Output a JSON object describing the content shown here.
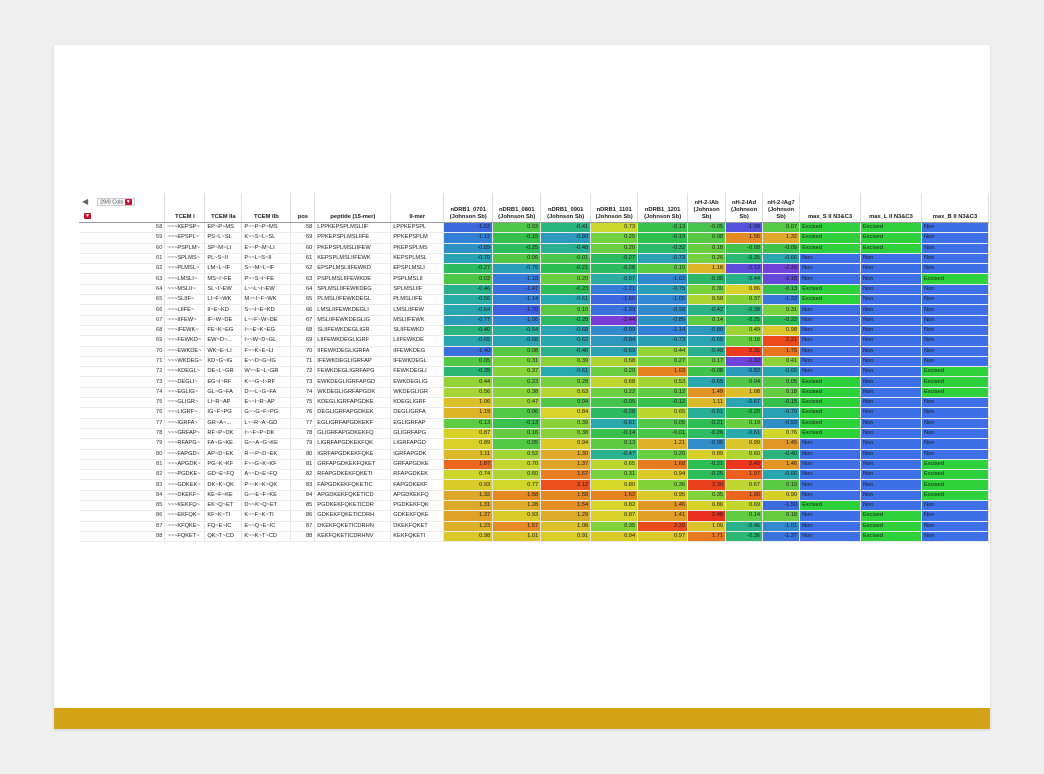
{
  "toolbar": {
    "col_count_label": "29/0 Cols"
  },
  "table": {
    "columns": [
      "",
      "TCEM I",
      "TCEM IIa",
      "TCEM IIb",
      "pos",
      "peptide (15-mer)",
      "9-mer",
      "nDRB1_0701 (Johnson Sb)",
      "nDRB1_0801 (Johnson Sb)",
      "nDRB1_0901 (Johnson Sb)",
      "nDRB1_1101 (Johnson Sb)",
      "nDRB1_1201 (Johnson Sb)",
      "nH-2-IAb (Johnson Sb)",
      "nH-2-IAd (Johnson Sb)",
      "nH-2-IAg7 (Johnson Sb)",
      "max_S II N3&C3",
      "max_L II N3&C3",
      "max_B II N3&C3"
    ],
    "rows": [
      [
        "58",
        "~~~KEPSP~",
        "EP~P~MS",
        "P~~P~P~MS",
        "58",
        "LPPKEPSPLMSLIIF",
        "LPPKEPSPL",
        "-1.52",
        "0.03",
        "-0.41",
        "0.73",
        "-0.13",
        "-0.05",
        "-1.98",
        "0.07",
        "Excised",
        "Excised",
        "Non"
      ],
      [
        "59",
        "~~~EPSPL~",
        "PS~L~SL",
        "K~~S~L~SL",
        "59",
        "PPKEPSPLMSLIIFE",
        "PPKEPSPLM",
        "-1.12",
        "-0.15",
        "-0.80",
        "0.25",
        "-0.19",
        "0.08",
        "1.56",
        "1.32",
        "Excised",
        "Excised",
        "Non"
      ],
      [
        "60",
        "~~~PSPLM~",
        "SP~M~LI",
        "E~~P~M~LI",
        "60",
        "PKEPSPLMSLIIFEW",
        "PKEPSPLMS",
        "-0.89",
        "-0.25",
        "-0.48",
        "0.20",
        "-0.32",
        "0.18",
        "-0.08",
        "-0.09",
        "Excised",
        "Excised",
        "Non"
      ],
      [
        "61",
        "~~~SPLMS~",
        "PL~S~II",
        "P~~L~S~II",
        "61",
        "KEPSPLMSLIIFEWK",
        "KEPSPLMSL",
        "-0.70",
        "0.06",
        "-0.01",
        "-0.27",
        "-0.73",
        "0.26",
        "-0.35",
        "-0.66",
        "Non",
        "Non",
        "Non"
      ],
      [
        "62",
        "~~~PLMSL~",
        "LM~L~IF",
        "S~~M~L~IF",
        "62",
        "EPSPLMSLIIFEWKD",
        "EPSPLMSLI",
        "-0.27",
        "-0.75",
        "-0.21",
        "-0.26",
        "0.10",
        "1.18",
        "-2.13",
        "-2.36",
        "Non",
        "Non",
        "Non"
      ],
      [
        "63",
        "~~~LMSLI~",
        "MS~I~FE",
        "P~~S~I~FE",
        "63",
        "PSPLMSLIIFEWKDE",
        "PSPLMSLII",
        "0.02",
        "-1.18",
        "0.20",
        "-0.57",
        "-1.02",
        "-0.30",
        "-0.44",
        "-2.18",
        "Non",
        "Non",
        "Excised"
      ],
      [
        "64",
        "~~~MSLII~",
        "SL~I~EW",
        "L~~L~I~EW",
        "64",
        "SPLMSLIIFEWKDEG",
        "SPLMSLIIF",
        "-0.46",
        "-1.47",
        "-0.23",
        "-1.21",
        "-0.75",
        "0.30",
        "0.86",
        "-0.13",
        "Excised",
        "Non",
        "Non"
      ],
      [
        "65",
        "~~~SLIIF~",
        "LI~F~WK",
        "M~~I~F~WK",
        "65",
        "PLMSLIIFEWKDEGL",
        "PLMSLIIFE",
        "-0.56",
        "-1.14",
        "-0.61",
        "-1.60",
        "-1.05",
        "0.58",
        "0.37",
        "-1.32",
        "Excised",
        "Non",
        "Non"
      ],
      [
        "66",
        "~~~LIIFE~",
        "II~E~KD",
        "S~~I~E~KD",
        "66",
        "LMSLIIFEWKDEGLI",
        "LMSLIIFEW",
        "-0.64",
        "-1.70",
        "0.10",
        "-1.39",
        "-0.99",
        "-0.42",
        "-0.38",
        "0.31",
        "Non",
        "Non",
        "Non"
      ],
      [
        "67",
        "~~~IIFEW~",
        "IF~W~DE",
        "L~~F~W~DE",
        "67",
        "MSLIIFEWKDEGLIG",
        "MSLIIFEWK",
        "-0.77",
        "-1.06",
        "-0.28",
        "-2.44",
        "-0.89",
        "0.14",
        "-0.25",
        "-0.22",
        "Non",
        "Non",
        "Non"
      ],
      [
        "68",
        "~~~IFEWK~",
        "FE~K~EG",
        "I~~E~K~EG",
        "68",
        "SLIIFEWKDEGLIGR",
        "SLIIFEWKD",
        "-0.40",
        "-0.54",
        "-0.68",
        "-0.99",
        "-1.14",
        "-0.80",
        "0.49",
        "0.98",
        "Non",
        "Non",
        "Non"
      ],
      [
        "69",
        "~~~FEWKD~",
        "EW~D~...",
        "I~~W~D~GL",
        "69",
        "LIIFEWKDEGLIGRF",
        "LIIFEWKDE",
        "-0.65",
        "-0.68",
        "-0.62",
        "-0.84",
        "-0.73",
        "-0.69",
        "0.18",
        "2.21",
        "Non",
        "Non",
        "Non"
      ],
      [
        "70",
        "~~~EWKDE~",
        "WK~E~LI",
        "F~~K~E~LI",
        "70",
        "IIFEWKDEGLIGRFA",
        "IIFEWKDEG",
        "-1.40",
        "0.08",
        "-0.46",
        "-0.69",
        "0.44",
        "-0.48",
        "2.35",
        "1.75",
        "Non",
        "Non",
        "Non"
      ],
      [
        "71",
        "~~~WKDEG~",
        "KD~G~IG",
        "E~~D~G~IG",
        "71",
        "IFEWKDEGLIGRFAP",
        "IFEWKDEGL",
        "0.05",
        "0.31",
        "0.39",
        "0.58",
        "0.27",
        "0.17",
        "-2.32",
        "0.41",
        "Non",
        "Non",
        "Non"
      ],
      [
        "72",
        "~~~KDEGL~",
        "DE~L~GR",
        "W~~E~L~GR",
        "72",
        "FEWKDEGLIGRFAPG",
        "FEWKDEGLI",
        "-0.35",
        "0.37",
        "-0.61",
        "0.20",
        "1.63",
        "-0.08",
        "-0.82",
        "-0.65",
        "Non",
        "Non",
        "Excised"
      ],
      [
        "73",
        "~~~DEGLI~",
        "EG~I~RF",
        "K~~G~I~RF",
        "73",
        "EWKDEGLIGRFAPGD",
        "EWKDEGLIG",
        "0.44",
        "0.23",
        "0.28",
        "0.68",
        "0.53",
        "-0.65",
        "0.04",
        "0.05",
        "Excised",
        "Non",
        "Excised"
      ],
      [
        "74",
        "~~~EGLIG~",
        "GL~G~FA",
        "D~~L~G~FA",
        "74",
        "WKDEGLIGRFAPGDK",
        "WKDEGLIGR",
        "0.56",
        "0.38",
        "0.63",
        "0.22",
        "0.12",
        "1.49",
        "1.08",
        "0.18",
        "Excised",
        "Non",
        "Excised"
      ],
      [
        "75",
        "~~~GLIGR~",
        "LI~R~AP",
        "E~~I~R~AP",
        "75",
        "KDEGLIGRFAPGDKE",
        "KDEGLIGRF",
        "1.06",
        "0.47",
        "0.04",
        "-0.05",
        "-0.12",
        "1.11",
        "-0.67",
        "-0.15",
        "Excised",
        "Non",
        "Non"
      ],
      [
        "76",
        "~~~LIGRF~",
        "IG~F~PG",
        "G~~G~F~PG",
        "76",
        "DEGLIGRFAPGDKEK",
        "DEGLIGRFA",
        "1.19",
        "0.06",
        "0.84",
        "-0.28",
        "0.65",
        "-0.51",
        "-0.20",
        "-0.70",
        "Excised",
        "Non",
        "Non"
      ],
      [
        "77",
        "~~~IGRFA~",
        "GR~A~...",
        "L~~R~A~GD",
        "77",
        "EGLIGRFAPGDKEKF",
        "EGLIGRFAP",
        "0.13",
        "-0.13",
        "0.39",
        "-0.61",
        "0.05",
        "-0.21",
        "0.19",
        "-0.93",
        "Excised",
        "Non",
        "Non"
      ],
      [
        "78",
        "~~~GRFAP~",
        "RF~P~DK",
        "I~~F~P~DK",
        "78",
        "GLIGRFAPGDKEKFQ",
        "GLIGRFAPG",
        "0.87",
        "0.16",
        "0.38",
        "-0.14",
        "-0.01",
        "-0.26",
        "-0.61",
        "0.76",
        "Excised",
        "Non",
        "Non"
      ],
      [
        "79",
        "~~~RFAPG~",
        "FA~G~KE",
        "G~~A~G~KE",
        "79",
        "LIGRFAPGDKEKFQK",
        "LIGRFAPGD",
        "0.89",
        "0.05",
        "0.94",
        "0.13",
        "1.21",
        "-0.96",
        "0.99",
        "1.45",
        "Non",
        "Non",
        "Non"
      ],
      [
        "80",
        "~~~FAPGD~",
        "AP~D~EK",
        "R~~P~D~EK",
        "80",
        "IGRFAPGDKEKFQKE",
        "IGRFAPGDK",
        "1.11",
        "0.52",
        "1.30",
        "-0.47",
        "0.20",
        "0.89",
        "0.60",
        "-0.40",
        "Non",
        "Non",
        "Non"
      ],
      [
        "81",
        "~~~APGDK~",
        "PG~K~KF",
        "F~~G~K~KF",
        "81",
        "GRFAPGDKEKFQKET",
        "GRFAPGDKE",
        "1.87",
        "0.70",
        "1.37",
        "0.65",
        "1.68",
        "-0.21",
        "2.40",
        "1.46",
        "Non",
        "Non",
        "Excised"
      ],
      [
        "82",
        "~~~PGDKE~",
        "GD~E~FQ",
        "A~~D~E~FQ",
        "82",
        "RFAPGDKEKFQKETI",
        "RFAPGDKEK",
        "0.74",
        "0.60",
        "1.67",
        "0.31",
        "0.94",
        "-0.25",
        "1.97",
        "-0.66",
        "Non",
        "Non",
        "Excised"
      ],
      [
        "83",
        "~~~GDKEK~",
        "DK~K~QK",
        "P~~K~K~QK",
        "83",
        "FAPGDKEKFQKETIC",
        "FAPGDKEKF",
        "0.93",
        "0.77",
        "2.12",
        "0.80",
        "0.36",
        "2.30",
        "0.67",
        "0.10",
        "Non",
        "Non",
        "Excised"
      ],
      [
        "84",
        "~~~DKEKF~",
        "KE~F~KE",
        "G~~E~F~KE",
        "84",
        "APGDKEKFQKETICD",
        "APGDKEKFQ",
        "1.32",
        "1.58",
        "1.58",
        "1.62",
        "0.95",
        "0.35",
        "1.90",
        "0.90",
        "Non",
        "Non",
        "Excised"
      ],
      [
        "85",
        "~~~KEKFQ~",
        "EK~Q~ET",
        "D~~K~Q~ET",
        "85",
        "PGDKEKFQKETICDR",
        "PGDKEKFQK",
        "1.31",
        "1.28",
        "1.54",
        "0.82",
        "1.46",
        "0.86",
        "0.69",
        "-1.50",
        "Excised",
        "Non",
        "Non"
      ],
      [
        "86",
        "~~~EKFQK~",
        "KF~K~TI",
        "K~~F~K~TI",
        "86",
        "GDKEKFQKETICDRH",
        "GDKEKFQKE",
        "1.37",
        "0.93",
        "1.29",
        "0.87",
        "1.41",
        "2.48",
        "0.14",
        "0.18",
        "Non",
        "Excised",
        "Non"
      ],
      [
        "87",
        "~~~KFQKE~",
        "FQ~E~IC",
        "E~~Q~E~IC",
        "87",
        "DKEKFQKETICDRHN",
        "DKEKFQKET",
        "1.23",
        "1.57",
        "1.08",
        "0.35",
        "2.20",
        "1.00",
        "-0.46",
        "-1.01",
        "Non",
        "Excised",
        "Non"
      ],
      [
        "88",
        "~~~FQKET~",
        "QK~T~CD",
        "K~~K~T~CD",
        "88",
        "KEKFQKETICDRHNV",
        "KEKFQKETI",
        "0.98",
        "1.01",
        "0.91",
        "0.94",
        "0.97",
        "1.71",
        "-0.36",
        "-1.37",
        "Non",
        "Excised",
        "Non"
      ]
    ]
  }
}
